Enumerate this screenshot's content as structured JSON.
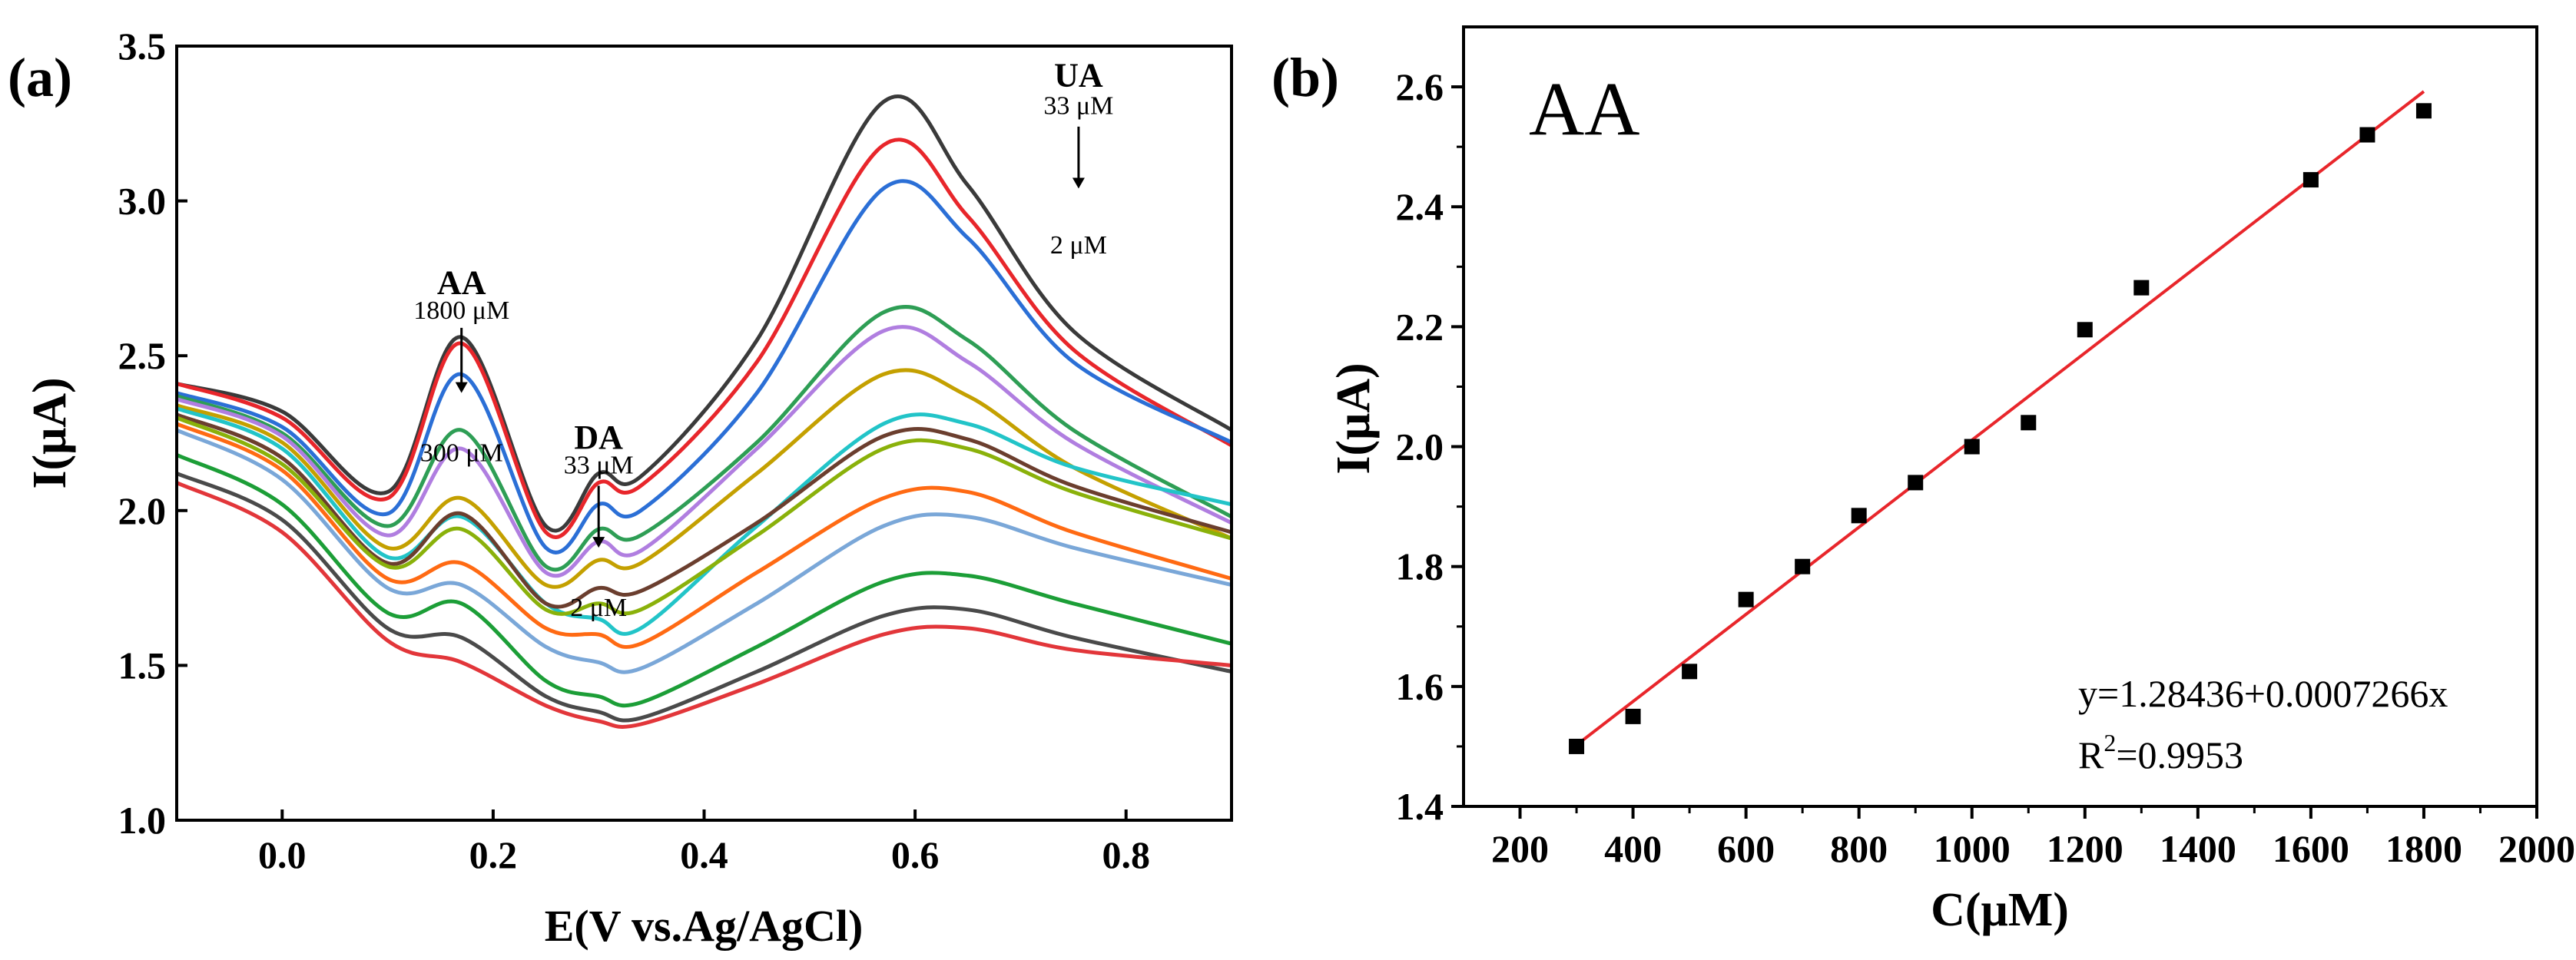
{
  "chart_data": [
    {
      "panel": "a",
      "type": "line",
      "panel_label": "(a)",
      "xlabel": "E(V vs.Ag/AgCl)",
      "ylabel": "I(μA)",
      "xlim": [
        -0.1,
        0.9
      ],
      "ylim": [
        1.0,
        3.5
      ],
      "xticks": [
        0.0,
        0.2,
        0.4,
        0.6,
        0.8
      ],
      "xtick_labels": [
        "0.0",
        "0.2",
        "0.4",
        "0.6",
        "0.8"
      ],
      "yticks": [
        1.0,
        1.5,
        2.0,
        2.5,
        3.0,
        3.5
      ],
      "ytick_labels": [
        "1.0",
        "1.5",
        "2.0",
        "2.5",
        "3.0",
        "3.5"
      ],
      "annotations": [
        {
          "name": "AA",
          "label": "AA",
          "from": "1800 μM",
          "to": "300 μM",
          "x": 0.17,
          "y_label": 2.7,
          "y_from": 2.62,
          "y_to": 2.16,
          "arrow": [
            2.59,
            2.38
          ]
        },
        {
          "name": "DA",
          "label": "DA",
          "from": "33 μM",
          "to": "2 μM",
          "x": 0.3,
          "y_label": 2.2,
          "y_from": 2.12,
          "y_to": 1.66,
          "arrow": [
            2.08,
            1.88
          ]
        },
        {
          "name": "UA",
          "label": "UA",
          "from": "33 μM",
          "to": "2 μM",
          "x": 0.755,
          "y_label": 3.37,
          "y_from": 3.28,
          "y_to": 2.83,
          "arrow": [
            3.24,
            3.04
          ]
        }
      ],
      "series": [
        {
          "name": "s1",
          "color": "#3a3a3a",
          "values": [
            [
              -0.1,
              2.41
            ],
            [
              0.0,
              2.32
            ],
            [
              0.1,
              2.06
            ],
            [
              0.17,
              2.56
            ],
            [
              0.25,
              1.95
            ],
            [
              0.3,
              2.12
            ],
            [
              0.34,
              2.11
            ],
            [
              0.45,
              2.55
            ],
            [
              0.57,
              3.32
            ],
            [
              0.65,
              3.05
            ],
            [
              0.75,
              2.58
            ],
            [
              0.9,
              2.26
            ]
          ]
        },
        {
          "name": "s2",
          "color": "#e8262b",
          "values": [
            [
              -0.1,
              2.41
            ],
            [
              0.0,
              2.3
            ],
            [
              0.1,
              2.04
            ],
            [
              0.17,
              2.54
            ],
            [
              0.25,
              1.93
            ],
            [
              0.3,
              2.09
            ],
            [
              0.34,
              2.08
            ],
            [
              0.45,
              2.48
            ],
            [
              0.57,
              3.18
            ],
            [
              0.65,
              2.95
            ],
            [
              0.75,
              2.52
            ],
            [
              0.9,
              2.21
            ]
          ]
        },
        {
          "name": "s3",
          "color": "#2b6fd6",
          "values": [
            [
              -0.1,
              2.38
            ],
            [
              0.0,
              2.27
            ],
            [
              0.1,
              1.99
            ],
            [
              0.17,
              2.44
            ],
            [
              0.25,
              1.88
            ],
            [
              0.3,
              2.02
            ],
            [
              0.34,
              2.0
            ],
            [
              0.45,
              2.38
            ],
            [
              0.57,
              3.04
            ],
            [
              0.65,
              2.88
            ],
            [
              0.75,
              2.48
            ],
            [
              0.9,
              2.22
            ]
          ]
        },
        {
          "name": "s4",
          "color": "#2e9e55",
          "values": [
            [
              -0.1,
              2.37
            ],
            [
              0.0,
              2.25
            ],
            [
              0.1,
              1.95
            ],
            [
              0.17,
              2.26
            ],
            [
              0.25,
              1.82
            ],
            [
              0.3,
              1.94
            ],
            [
              0.34,
              1.92
            ],
            [
              0.45,
              2.22
            ],
            [
              0.57,
              2.64
            ],
            [
              0.65,
              2.55
            ],
            [
              0.75,
              2.26
            ],
            [
              0.9,
              1.98
            ]
          ]
        },
        {
          "name": "s5",
          "color": "#b07ee0",
          "values": [
            [
              -0.1,
              2.36
            ],
            [
              0.0,
              2.24
            ],
            [
              0.1,
              1.92
            ],
            [
              0.17,
              2.2
            ],
            [
              0.25,
              1.8
            ],
            [
              0.3,
              1.9
            ],
            [
              0.34,
              1.87
            ],
            [
              0.45,
              2.2
            ],
            [
              0.57,
              2.58
            ],
            [
              0.65,
              2.48
            ],
            [
              0.75,
              2.22
            ],
            [
              0.9,
              1.96
            ]
          ]
        },
        {
          "name": "s6",
          "color": "#c4a000",
          "values": [
            [
              -0.1,
              2.34
            ],
            [
              0.0,
              2.22
            ],
            [
              0.1,
              1.88
            ],
            [
              0.17,
              2.04
            ],
            [
              0.25,
              1.76
            ],
            [
              0.3,
              1.84
            ],
            [
              0.34,
              1.83
            ],
            [
              0.45,
              2.12
            ],
            [
              0.57,
              2.44
            ],
            [
              0.65,
              2.37
            ],
            [
              0.75,
              2.14
            ],
            [
              0.9,
              1.91
            ]
          ]
        },
        {
          "name": "s7",
          "color": "#22c4c8",
          "values": [
            [
              -0.1,
              2.33
            ],
            [
              0.0,
              2.2
            ],
            [
              0.1,
              1.85
            ],
            [
              0.17,
              1.98
            ],
            [
              0.25,
              1.7
            ],
            [
              0.3,
              1.65
            ],
            [
              0.34,
              1.62
            ],
            [
              0.45,
              1.95
            ],
            [
              0.57,
              2.28
            ],
            [
              0.65,
              2.28
            ],
            [
              0.75,
              2.14
            ],
            [
              0.9,
              2.02
            ]
          ]
        },
        {
          "name": "s8",
          "color": "#6b3e2e",
          "values": [
            [
              -0.1,
              2.31
            ],
            [
              0.0,
              2.17
            ],
            [
              0.1,
              1.83
            ],
            [
              0.17,
              1.99
            ],
            [
              0.25,
              1.7
            ],
            [
              0.3,
              1.75
            ],
            [
              0.34,
              1.74
            ],
            [
              0.45,
              1.96
            ],
            [
              0.57,
              2.24
            ],
            [
              0.65,
              2.23
            ],
            [
              0.75,
              2.08
            ],
            [
              0.9,
              1.93
            ]
          ]
        },
        {
          "name": "s9",
          "color": "#8ab10a",
          "values": [
            [
              -0.1,
              2.3
            ],
            [
              0.0,
              2.15
            ],
            [
              0.1,
              1.82
            ],
            [
              0.17,
              1.94
            ],
            [
              0.25,
              1.68
            ],
            [
              0.3,
              1.7
            ],
            [
              0.34,
              1.68
            ],
            [
              0.45,
              1.92
            ],
            [
              0.57,
              2.2
            ],
            [
              0.65,
              2.2
            ],
            [
              0.75,
              2.06
            ],
            [
              0.9,
              1.91
            ]
          ]
        },
        {
          "name": "s10",
          "color": "#ff6a13",
          "values": [
            [
              -0.1,
              2.28
            ],
            [
              0.0,
              2.13
            ],
            [
              0.1,
              1.78
            ],
            [
              0.17,
              1.83
            ],
            [
              0.25,
              1.62
            ],
            [
              0.3,
              1.6
            ],
            [
              0.34,
              1.57
            ],
            [
              0.45,
              1.8
            ],
            [
              0.57,
              2.04
            ],
            [
              0.65,
              2.06
            ],
            [
              0.75,
              1.93
            ],
            [
              0.9,
              1.78
            ]
          ]
        },
        {
          "name": "s11",
          "color": "#7aa7d8",
          "values": [
            [
              -0.1,
              2.26
            ],
            [
              0.0,
              2.1
            ],
            [
              0.1,
              1.75
            ],
            [
              0.17,
              1.76
            ],
            [
              0.25,
              1.56
            ],
            [
              0.3,
              1.51
            ],
            [
              0.34,
              1.49
            ],
            [
              0.45,
              1.7
            ],
            [
              0.57,
              1.95
            ],
            [
              0.65,
              1.98
            ],
            [
              0.75,
              1.88
            ],
            [
              0.9,
              1.76
            ]
          ]
        },
        {
          "name": "s12",
          "color": "#1c9e37",
          "values": [
            [
              -0.1,
              2.18
            ],
            [
              0.0,
              2.02
            ],
            [
              0.1,
              1.67
            ],
            [
              0.17,
              1.7
            ],
            [
              0.25,
              1.45
            ],
            [
              0.3,
              1.4
            ],
            [
              0.34,
              1.38
            ],
            [
              0.45,
              1.56
            ],
            [
              0.57,
              1.77
            ],
            [
              0.65,
              1.79
            ],
            [
              0.75,
              1.7
            ],
            [
              0.9,
              1.57
            ]
          ]
        },
        {
          "name": "s13",
          "color": "#4a4a4a",
          "values": [
            [
              -0.1,
              2.12
            ],
            [
              0.0,
              1.97
            ],
            [
              0.1,
              1.62
            ],
            [
              0.17,
              1.59
            ],
            [
              0.25,
              1.4
            ],
            [
              0.3,
              1.35
            ],
            [
              0.34,
              1.33
            ],
            [
              0.45,
              1.48
            ],
            [
              0.57,
              1.66
            ],
            [
              0.65,
              1.68
            ],
            [
              0.75,
              1.59
            ],
            [
              0.9,
              1.48
            ]
          ]
        },
        {
          "name": "s14",
          "color": "#e2363a",
          "values": [
            [
              -0.1,
              2.09
            ],
            [
              0.0,
              1.93
            ],
            [
              0.1,
              1.58
            ],
            [
              0.17,
              1.51
            ],
            [
              0.25,
              1.37
            ],
            [
              0.3,
              1.32
            ],
            [
              0.34,
              1.31
            ],
            [
              0.45,
              1.44
            ],
            [
              0.57,
              1.6
            ],
            [
              0.65,
              1.62
            ],
            [
              0.75,
              1.55
            ],
            [
              0.9,
              1.5
            ]
          ]
        }
      ]
    },
    {
      "panel": "b",
      "type": "scatter",
      "panel_label": "(b)",
      "title": "AA",
      "xlabel": "C(μM)",
      "ylabel": "I(μA)",
      "xlim": [
        100,
        2000
      ],
      "ylim": [
        1.4,
        2.7
      ],
      "xticks": [
        200,
        400,
        600,
        800,
        1000,
        1200,
        1400,
        1600,
        1800,
        2000
      ],
      "xtick_labels": [
        "200",
        "400",
        "600",
        "800",
        "1000",
        "1200",
        "1400",
        "1600",
        "1800",
        "2000"
      ],
      "yticks": [
        1.4,
        1.6,
        1.8,
        2.0,
        2.2,
        2.4,
        2.6
      ],
      "ytick_labels": [
        "1.4",
        "1.6",
        "1.8",
        "2.0",
        "2.2",
        "2.4",
        "2.6"
      ],
      "points": [
        [
          300,
          1.5
        ],
        [
          400,
          1.55
        ],
        [
          500,
          1.625
        ],
        [
          600,
          1.745
        ],
        [
          700,
          1.8
        ],
        [
          800,
          1.885
        ],
        [
          900,
          1.94
        ],
        [
          1000,
          2.0
        ],
        [
          1100,
          2.04
        ],
        [
          1200,
          2.195
        ],
        [
          1300,
          2.265
        ],
        [
          1600,
          2.445
        ],
        [
          1700,
          2.52
        ],
        [
          1800,
          2.56
        ]
      ],
      "fit": {
        "intercept": 1.28436,
        "slope": 0.0007266,
        "x_range": [
          300,
          1800
        ],
        "color": "#e8262b"
      },
      "equation": "y=1.28436+0.0007266x",
      "r2_base": "R",
      "r2_sup": "2",
      "r2_value": "=0.9953"
    }
  ]
}
